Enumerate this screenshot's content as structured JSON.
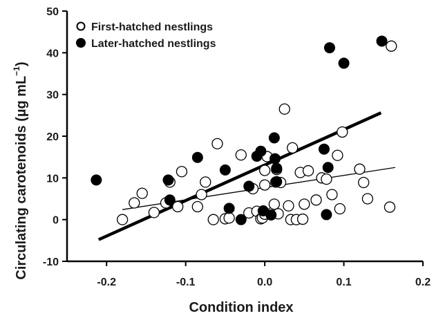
{
  "chart_data": {
    "type": "scatter",
    "title": "",
    "xlabel": "Condition index",
    "ylabel_main": "Circulating carotenoids (µg mL",
    "ylabel_sup": "−1",
    "ylabel_close": ")",
    "xlim": [
      -0.25,
      0.2
    ],
    "ylim": [
      -10,
      50
    ],
    "xticks": [
      -0.2,
      -0.1,
      0.0,
      0.1,
      0.2
    ],
    "xtick_labels": [
      "-0.2",
      "-0.1",
      "0.0",
      "0.1",
      "0.2"
    ],
    "yticks": [
      -10,
      0,
      10,
      20,
      30,
      40,
      50
    ],
    "ytick_labels": [
      "-10",
      "0",
      "10",
      "20",
      "30",
      "40",
      "50"
    ],
    "grid": false,
    "legend_position": "top-left",
    "colors": {
      "first": "#ffffff",
      "later": "#000000",
      "stroke": "#000000"
    },
    "series": [
      {
        "name": "First-hatched nestlings",
        "marker": "open-circle",
        "points": [
          [
            -0.18,
            0.0
          ],
          [
            -0.165,
            4.0
          ],
          [
            -0.155,
            6.3
          ],
          [
            -0.14,
            1.7
          ],
          [
            -0.125,
            4.0
          ],
          [
            -0.12,
            9.0
          ],
          [
            -0.105,
            11.5
          ],
          [
            -0.11,
            3.1
          ],
          [
            -0.085,
            3.1
          ],
          [
            -0.08,
            6.0
          ],
          [
            -0.075,
            9.0
          ],
          [
            -0.065,
            0.0
          ],
          [
            -0.06,
            18.2
          ],
          [
            -0.05,
            0.2
          ],
          [
            -0.045,
            0.4
          ],
          [
            -0.03,
            15.5
          ],
          [
            -0.02,
            1.6
          ],
          [
            -0.015,
            7.4
          ],
          [
            -0.01,
            2.0
          ],
          [
            -0.005,
            0.2
          ],
          [
            -0.003,
            0.4
          ],
          [
            0.0,
            1.3
          ],
          [
            0.0,
            8.3
          ],
          [
            0.0,
            11.8
          ],
          [
            0.003,
            15.1
          ],
          [
            0.01,
            1.7
          ],
          [
            0.012,
            3.7
          ],
          [
            0.014,
            9.0
          ],
          [
            0.015,
            12.0
          ],
          [
            0.017,
            1.4
          ],
          [
            0.02,
            8.9
          ],
          [
            0.025,
            26.5
          ],
          [
            0.03,
            3.3
          ],
          [
            0.033,
            0.0
          ],
          [
            0.035,
            17.2
          ],
          [
            0.04,
            0.0
          ],
          [
            0.045,
            11.3
          ],
          [
            0.048,
            0.1
          ],
          [
            0.05,
            3.7
          ],
          [
            0.055,
            11.7
          ],
          [
            0.065,
            4.7
          ],
          [
            0.072,
            10.0
          ],
          [
            0.078,
            9.7
          ],
          [
            0.085,
            6.0
          ],
          [
            0.092,
            15.4
          ],
          [
            0.095,
            2.6
          ],
          [
            0.098,
            21.0
          ],
          [
            0.12,
            12.1
          ],
          [
            0.125,
            8.9
          ],
          [
            0.13,
            5.0
          ],
          [
            0.158,
            3.0
          ],
          [
            0.16,
            41.6
          ]
        ]
      },
      {
        "name": "Later-hatched nestlings",
        "marker": "filled-circle",
        "points": [
          [
            -0.213,
            9.5
          ],
          [
            -0.122,
            9.5
          ],
          [
            -0.12,
            4.7
          ],
          [
            -0.085,
            14.9
          ],
          [
            -0.05,
            11.9
          ],
          [
            -0.045,
            2.7
          ],
          [
            -0.03,
            0.0
          ],
          [
            -0.02,
            8.0
          ],
          [
            -0.01,
            15.2
          ],
          [
            -0.005,
            16.4
          ],
          [
            -0.002,
            2.1
          ],
          [
            0.008,
            1.1
          ],
          [
            0.012,
            19.6
          ],
          [
            0.013,
            14.6
          ],
          [
            0.015,
            12.3
          ],
          [
            0.015,
            9.1
          ],
          [
            0.075,
            16.9
          ],
          [
            0.078,
            1.2
          ],
          [
            0.08,
            12.5
          ],
          [
            0.082,
            41.2
          ],
          [
            0.1,
            37.5
          ],
          [
            0.148,
            42.8
          ]
        ]
      }
    ],
    "trendlines": [
      {
        "series": "Later-hatched nestlings",
        "style": "thick",
        "x": [
          -0.21,
          0.147
        ],
        "y": [
          -4.8,
          25.6
        ]
      },
      {
        "series": "First-hatched nestlings",
        "style": "thin",
        "x": [
          -0.18,
          0.165
        ],
        "y": [
          2.4,
          12.5
        ]
      }
    ]
  }
}
